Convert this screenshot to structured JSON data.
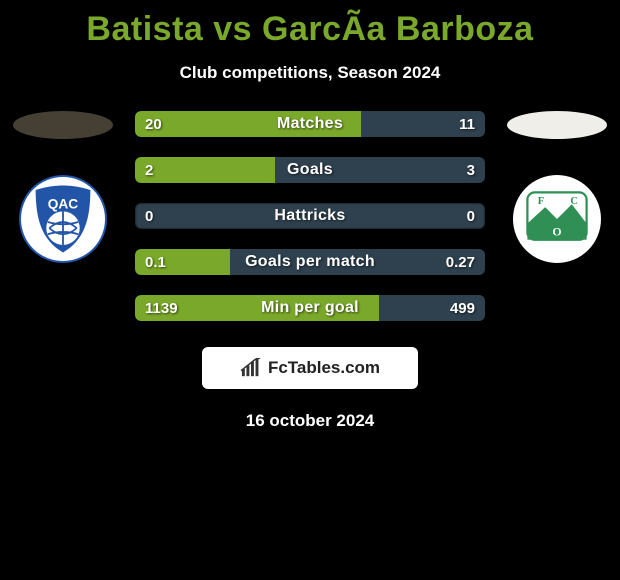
{
  "title": {
    "text": "Batista vs GarcÃ­a Barboza",
    "color": "#7aa82a",
    "fontsize": 34,
    "fontweight": 800
  },
  "subtitle": {
    "text": "Club competitions, Season 2024",
    "color": "#ffffff",
    "fontsize": 17
  },
  "player_left": {
    "ellipse_color": "#454033"
  },
  "player_right": {
    "ellipse_color": "#efeee9"
  },
  "club_left": {
    "name": "QAC",
    "badge_bg": "#ffffff",
    "primary": "#2255a8",
    "accent": "#ffffff"
  },
  "club_right": {
    "name": "FCO",
    "badge_bg": "#ffffff",
    "primary": "#2f8f55",
    "accent": "#ffffff"
  },
  "bars": {
    "left_color": "#7aa82a",
    "right_color": "#2f414e",
    "track_color": "#2f414e",
    "height": 26,
    "radius": 6,
    "label_fontsize": 16,
    "value_fontsize": 15,
    "text_color": "#ffffff",
    "rows": [
      {
        "label": "Matches",
        "left_val": "20",
        "right_val": "11",
        "left_pct": 64.5,
        "right_pct": 35.5
      },
      {
        "label": "Goals",
        "left_val": "2",
        "right_val": "3",
        "left_pct": 40.0,
        "right_pct": 60.0
      },
      {
        "label": "Hattricks",
        "left_val": "0",
        "right_val": "0",
        "left_pct": 0.0,
        "right_pct": 0.0
      },
      {
        "label": "Goals per match",
        "left_val": "0.1",
        "right_val": "0.27",
        "left_pct": 27.0,
        "right_pct": 73.0
      },
      {
        "label": "Min per goal",
        "left_val": "1139",
        "right_val": "499",
        "left_pct": 69.6,
        "right_pct": 30.4
      }
    ]
  },
  "brand": {
    "text": "FcTables.com",
    "bg": "#ffffff",
    "color": "#222222",
    "icon_color": "#333333"
  },
  "date": {
    "text": "16 october 2024",
    "color": "#ffffff",
    "fontsize": 17
  },
  "background_color": "#000000"
}
